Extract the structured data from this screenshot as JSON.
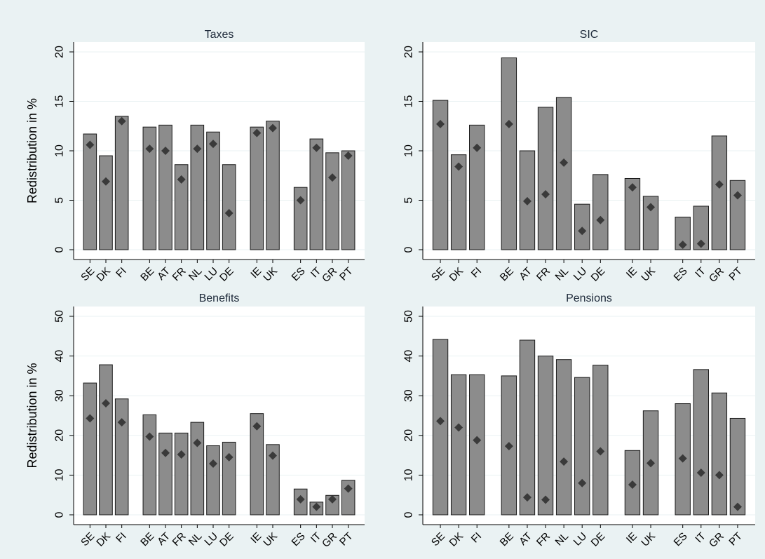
{
  "colors": {
    "figure_background": "#eaf2f3",
    "plot_background": "#ffffff",
    "bar_fill": "#8c8c8c",
    "bar_stroke": "#1a1a1a",
    "marker_fill": "#3a3a3a"
  },
  "chart_data": [
    {
      "type": "bar",
      "title": "Taxes",
      "ylabel": "Redistribution in %",
      "categories": [
        "SE",
        "DK",
        "FI",
        "BE",
        "AT",
        "FR",
        "NL",
        "LU",
        "DE",
        "IE",
        "UK",
        "ES",
        "IT",
        "GR",
        "PT"
      ],
      "groups": [
        3,
        6,
        2,
        4
      ],
      "series": [
        {
          "values": [
            11.7,
            9.5,
            13.5,
            12.4,
            12.6,
            8.6,
            12.6,
            11.9,
            8.6,
            12.4,
            13.0,
            6.3,
            11.2,
            9.8,
            10.0
          ]
        },
        {
          "values": [
            10.6,
            6.9,
            13.0,
            10.2,
            10.0,
            7.1,
            10.2,
            10.7,
            3.7,
            11.8,
            12.3,
            5.0,
            10.3,
            7.3,
            9.5
          ]
        }
      ],
      "ylim": [
        0,
        20
      ],
      "yticks": [
        0,
        5,
        10,
        15,
        20
      ],
      "grid": true
    },
    {
      "type": "bar",
      "title": "SIC",
      "ylabel": "",
      "categories": [
        "SE",
        "DK",
        "FI",
        "BE",
        "AT",
        "FR",
        "NL",
        "LU",
        "DE",
        "IE",
        "UK",
        "ES",
        "IT",
        "GR",
        "PT"
      ],
      "groups": [
        3,
        6,
        2,
        4
      ],
      "series": [
        {
          "values": [
            15.1,
            9.6,
            12.6,
            19.4,
            10.0,
            14.4,
            15.4,
            4.6,
            7.6,
            7.2,
            5.4,
            3.3,
            4.4,
            11.5,
            7.0
          ]
        },
        {
          "values": [
            12.7,
            8.4,
            10.3,
            12.7,
            4.9,
            5.6,
            8.8,
            1.9,
            3.0,
            6.3,
            4.3,
            0.5,
            0.6,
            6.6,
            5.5
          ]
        }
      ],
      "ylim": [
        0,
        20
      ],
      "yticks": [
        0,
        5,
        10,
        15,
        20
      ],
      "grid": true
    },
    {
      "type": "bar",
      "title": "Benefits",
      "ylabel": "Redistribution in %",
      "categories": [
        "SE",
        "DK",
        "FI",
        "BE",
        "AT",
        "FR",
        "NL",
        "LU",
        "DE",
        "IE",
        "UK",
        "ES",
        "IT",
        "GR",
        "PT"
      ],
      "groups": [
        3,
        6,
        2,
        4
      ],
      "series": [
        {
          "values": [
            33.2,
            37.8,
            29.2,
            25.2,
            20.6,
            20.6,
            23.3,
            17.4,
            18.3,
            25.5,
            17.7,
            6.5,
            3.2,
            4.9,
            8.7
          ]
        },
        {
          "values": [
            24.3,
            28.1,
            23.3,
            19.7,
            15.6,
            15.2,
            18.1,
            12.9,
            14.5,
            22.3,
            14.9,
            3.9,
            2.0,
            3.9,
            6.6
          ]
        }
      ],
      "ylim": [
        0,
        50
      ],
      "yticks": [
        0,
        10,
        20,
        30,
        40,
        50
      ],
      "grid": true
    },
    {
      "type": "bar",
      "title": "Pensions",
      "ylabel": "",
      "categories": [
        "SE",
        "DK",
        "FI",
        "BE",
        "AT",
        "FR",
        "NL",
        "LU",
        "DE",
        "IE",
        "UK",
        "ES",
        "IT",
        "GR",
        "PT"
      ],
      "groups": [
        3,
        6,
        2,
        4
      ],
      "series": [
        {
          "values": [
            44.2,
            35.3,
            35.3,
            35.0,
            44.0,
            40.0,
            39.1,
            34.6,
            37.7,
            16.2,
            26.2,
            28.0,
            36.6,
            30.7,
            24.3
          ]
        },
        {
          "values": [
            23.6,
            22.0,
            18.8,
            17.3,
            4.4,
            3.8,
            13.4,
            8.0,
            16.0,
            7.6,
            13.0,
            14.2,
            10.6,
            10.0,
            2.0
          ]
        }
      ],
      "ylim": [
        0,
        50
      ],
      "yticks": [
        0,
        10,
        20,
        30,
        40,
        50
      ],
      "grid": true
    }
  ]
}
